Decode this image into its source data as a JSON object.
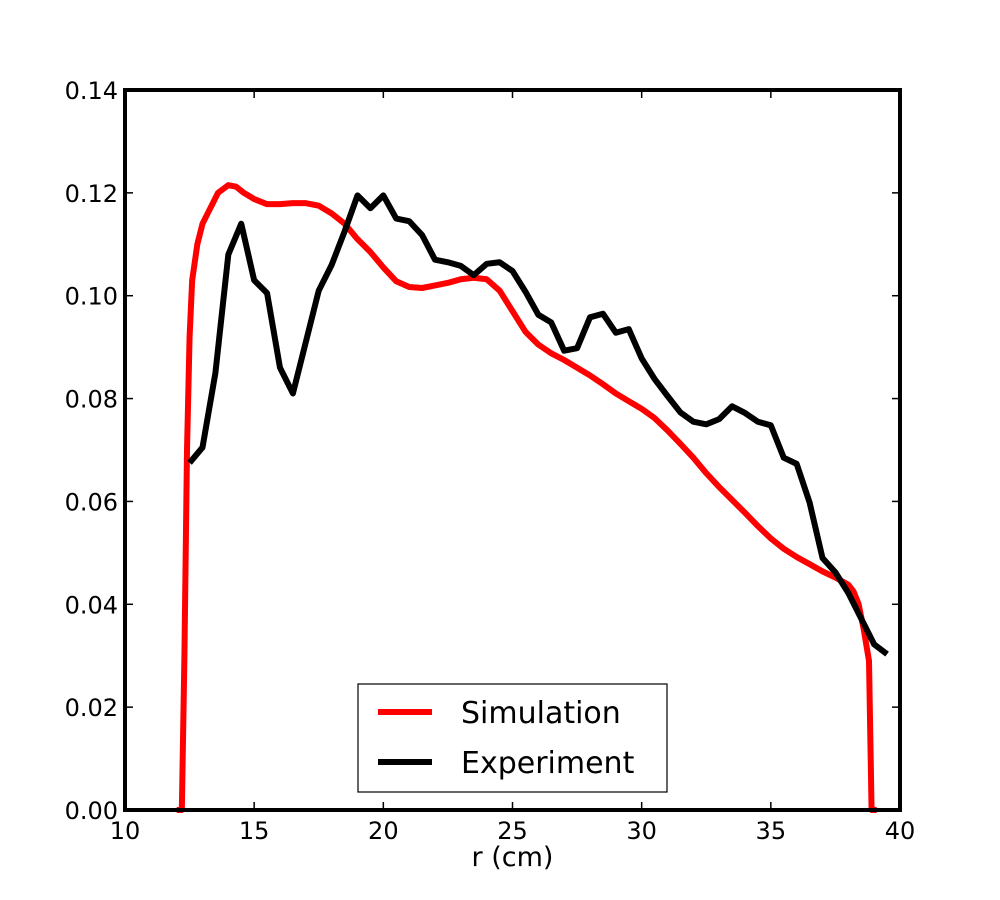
{
  "chart_data": {
    "type": "line",
    "title": "",
    "xlabel": "r (cm)",
    "ylabel": "",
    "xlim": [
      10,
      40
    ],
    "ylim": [
      0,
      0.14
    ],
    "xticks": [
      10,
      15,
      20,
      25,
      30,
      35,
      40
    ],
    "xtick_labels": [
      "10",
      "15",
      "20",
      "25",
      "30",
      "35",
      "40"
    ],
    "yticks": [
      0,
      0.02,
      0.04,
      0.06,
      0.08,
      0.1,
      0.12,
      0.14
    ],
    "ytick_labels": [
      "0.00",
      "0.02",
      "0.04",
      "0.06",
      "0.08",
      "0.10",
      "0.12",
      "0.14"
    ],
    "grid": false,
    "legend_position": "bottom-center",
    "series": [
      {
        "name": "Simulation",
        "color": "#ff0000",
        "x": [
          12.0,
          12.2,
          12.3,
          12.4,
          12.5,
          12.6,
          12.8,
          13.0,
          13.3,
          13.6,
          14.0,
          14.3,
          14.6,
          15.0,
          15.5,
          16.0,
          16.5,
          17.0,
          17.5,
          18.0,
          18.5,
          19.0,
          19.5,
          20.0,
          20.5,
          21.0,
          21.5,
          22.0,
          22.5,
          23.0,
          23.5,
          24.0,
          24.5,
          25.0,
          25.5,
          26.0,
          26.5,
          27.0,
          27.5,
          28.0,
          28.5,
          29.0,
          29.5,
          30.0,
          30.5,
          31.0,
          31.5,
          32.0,
          32.5,
          33.0,
          33.5,
          34.0,
          34.5,
          35.0,
          35.5,
          36.0,
          36.5,
          37.0,
          37.5,
          38.0,
          38.2,
          38.4,
          38.6,
          38.8,
          38.9,
          39.0,
          39.1
        ],
        "y": [
          0.0,
          0.0,
          0.03,
          0.07,
          0.092,
          0.103,
          0.11,
          0.114,
          0.117,
          0.12,
          0.1215,
          0.1212,
          0.12,
          0.1188,
          0.1178,
          0.1178,
          0.118,
          0.118,
          0.1175,
          0.116,
          0.114,
          0.111,
          0.1085,
          0.1055,
          0.1028,
          0.1017,
          0.1015,
          0.102,
          0.1025,
          0.1032,
          0.1035,
          0.1032,
          0.101,
          0.097,
          0.093,
          0.0905,
          0.0888,
          0.0875,
          0.086,
          0.0845,
          0.0828,
          0.081,
          0.0795,
          0.078,
          0.0762,
          0.0738,
          0.0712,
          0.0685,
          0.0655,
          0.0628,
          0.0603,
          0.0578,
          0.0552,
          0.0528,
          0.0508,
          0.0492,
          0.0478,
          0.0464,
          0.0452,
          0.0438,
          0.0425,
          0.04,
          0.035,
          0.029,
          0.0,
          0.0,
          0.0
        ]
      },
      {
        "name": "Experiment",
        "color": "#000000",
        "x": [
          12.5,
          13.0,
          13.5,
          14.0,
          14.5,
          15.0,
          15.5,
          16.0,
          16.5,
          17.0,
          17.5,
          18.0,
          18.5,
          19.0,
          19.5,
          20.0,
          20.5,
          21.0,
          21.5,
          22.0,
          22.5,
          23.0,
          23.5,
          24.0,
          24.5,
          25.0,
          25.5,
          26.0,
          26.5,
          27.0,
          27.5,
          28.0,
          28.5,
          29.0,
          29.5,
          30.0,
          30.5,
          31.0,
          31.5,
          32.0,
          32.5,
          33.0,
          33.5,
          34.0,
          34.5,
          35.0,
          35.5,
          36.0,
          36.5,
          37.0,
          37.5,
          38.0,
          38.5,
          39.0,
          39.5
        ],
        "y": [
          0.0675,
          0.0705,
          0.085,
          0.108,
          0.114,
          0.103,
          0.1005,
          0.086,
          0.081,
          0.091,
          0.101,
          0.106,
          0.1125,
          0.1195,
          0.117,
          0.1195,
          0.115,
          0.1145,
          0.1118,
          0.107,
          0.1065,
          0.1058,
          0.104,
          0.1062,
          0.1065,
          0.1048,
          0.1008,
          0.0963,
          0.0948,
          0.0893,
          0.0898,
          0.0958,
          0.0965,
          0.0928,
          0.0935,
          0.0878,
          0.0838,
          0.0805,
          0.0773,
          0.0755,
          0.075,
          0.076,
          0.0785,
          0.0772,
          0.0755,
          0.0748,
          0.0685,
          0.0673,
          0.0598,
          0.049,
          0.0462,
          0.0422,
          0.0372,
          0.0322,
          0.0303
        ]
      }
    ]
  }
}
